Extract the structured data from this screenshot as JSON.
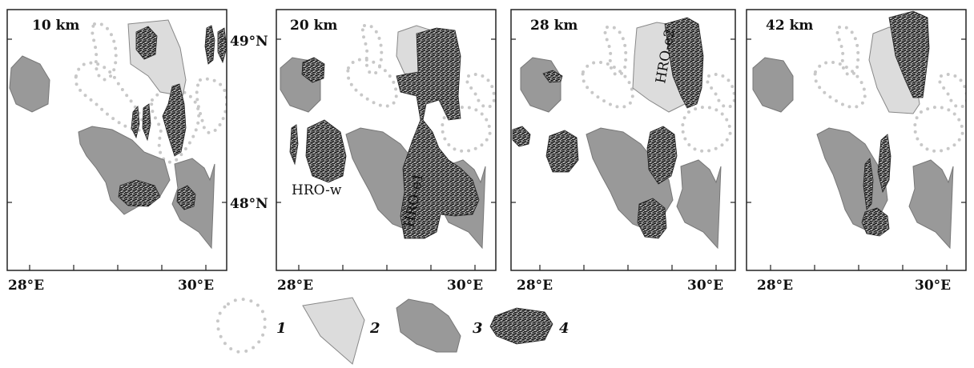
{
  "panels": [
    {
      "depth": "10 km",
      "x_ticks": [
        "28°E",
        "30°E"
      ]
    },
    {
      "depth": "20 km",
      "x_ticks": [
        "28°E",
        "30°E"
      ],
      "y_ticks": [
        "49°N",
        "48°N"
      ],
      "regions": [
        "HRO-w",
        "HRO-e1"
      ]
    },
    {
      "depth": "28 km",
      "x_ticks": [
        "28°E",
        "30°E"
      ],
      "regions": [
        "HRO-e2"
      ]
    },
    {
      "depth": "42 km",
      "x_ticks": [
        "28°E",
        "30°E"
      ]
    }
  ],
  "legend": [
    {
      "number": "1",
      "symbol": "dotted-outline"
    },
    {
      "number": "2",
      "symbol": "light-grey-area"
    },
    {
      "number": "3",
      "symbol": "dark-grey-area"
    },
    {
      "number": "4",
      "symbol": "hatched-area"
    }
  ],
  "colors": {
    "light_grey": "#dcdcdc",
    "dark_grey": "#999999",
    "dots": "#c8c8c8",
    "hatch_dark": "#222222",
    "frame": "#222222"
  }
}
